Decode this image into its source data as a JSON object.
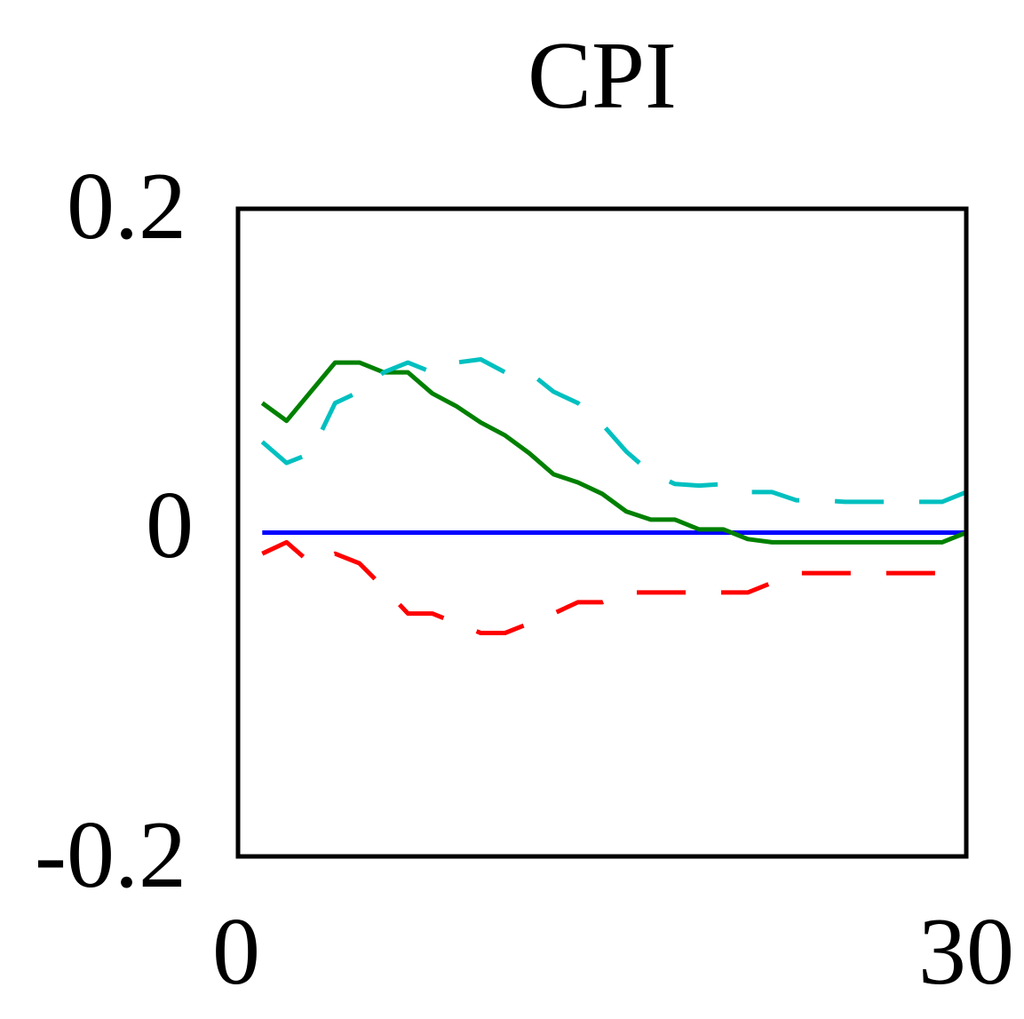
{
  "chart_data": {
    "type": "line",
    "title": "CPI",
    "xlabel": "",
    "ylabel": "",
    "xlim": [
      0,
      30
    ],
    "ylim": [
      -0.2,
      0.2
    ],
    "x_tick_labels": [
      "0",
      "30"
    ],
    "y_tick_labels": [
      "0.2",
      "0",
      "-0.2"
    ],
    "grid": false,
    "legend": "none",
    "x": [
      1,
      2,
      3,
      4,
      5,
      6,
      7,
      8,
      9,
      10,
      11,
      12,
      13,
      14,
      15,
      16,
      17,
      18,
      19,
      20,
      21,
      22,
      23,
      24,
      25,
      26,
      27,
      28,
      29,
      30
    ],
    "series": [
      {
        "key": "zero",
        "style": "solid",
        "color": "#0000ff",
        "values": [
          0,
          0,
          0,
          0,
          0,
          0,
          0,
          0,
          0,
          0,
          0,
          0,
          0,
          0,
          0,
          0,
          0,
          0,
          0,
          0,
          0,
          0,
          0,
          0,
          0,
          0,
          0,
          0,
          0,
          0
        ]
      },
      {
        "key": "response",
        "style": "solid",
        "color": "#008000",
        "values": [
          0.08,
          0.069,
          0.087,
          0.105,
          0.105,
          0.099,
          0.099,
          0.086,
          0.078,
          0.068,
          0.06,
          0.049,
          0.036,
          0.031,
          0.024,
          0.013,
          0.008,
          0.008,
          0.002,
          0.002,
          -0.004,
          -0.006,
          -0.006,
          -0.006,
          -0.006,
          -0.006,
          -0.006,
          -0.006,
          -0.006,
          0
        ]
      },
      {
        "key": "upper-band",
        "style": "dashed",
        "color": "#00c0c0",
        "values": [
          0.056,
          0.043,
          0.049,
          0.08,
          0.087,
          0.099,
          0.105,
          0.099,
          0.105,
          0.107,
          0.099,
          0.099,
          0.087,
          0.08,
          0.067,
          0.05,
          0.037,
          0.03,
          0.029,
          0.03,
          0.025,
          0.025,
          0.02,
          0.02,
          0.019,
          0.019,
          0.019,
          0.019,
          0.019,
          0.025
        ]
      },
      {
        "key": "lower-band",
        "style": "dashed",
        "color": "#ff0000",
        "values": [
          -0.013,
          -0.006,
          -0.019,
          -0.013,
          -0.019,
          -0.034,
          -0.05,
          -0.05,
          -0.056,
          -0.062,
          -0.062,
          -0.056,
          -0.05,
          -0.043,
          -0.043,
          -0.037,
          -0.037,
          -0.037,
          -0.037,
          -0.037,
          -0.037,
          -0.031,
          -0.025,
          -0.025,
          -0.025,
          -0.025,
          -0.025,
          -0.025,
          -0.025,
          -0.025
        ]
      }
    ]
  }
}
